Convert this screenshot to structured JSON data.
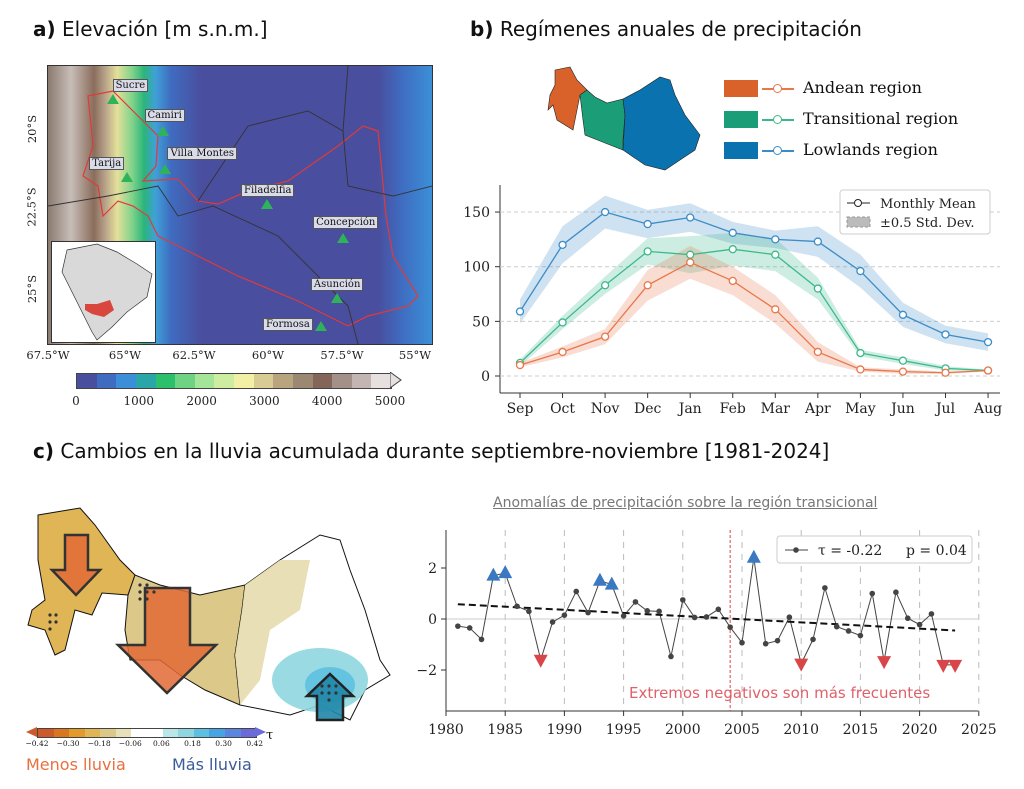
{
  "panel_a": {
    "letter": "a)",
    "title": "Elevación [m s.n.m.]",
    "lon_ticks": [
      "67.5°W",
      "65°W",
      "62.5°W",
      "60°W",
      "57.5°W",
      "55°W"
    ],
    "lat_ticks": [
      "20°S",
      "22.5°S",
      "25°S"
    ],
    "cities": [
      {
        "name": "Sucre",
        "lon": -65.3,
        "lat": -19.05
      },
      {
        "name": "Camiri",
        "lon": -63.6,
        "lat": -20.06
      },
      {
        "name": "Villa Montes",
        "lon": -63.5,
        "lat": -21.26
      },
      {
        "name": "Tarija",
        "lon": -64.8,
        "lat": -21.5
      },
      {
        "name": "Filadelfia",
        "lon": -60.04,
        "lat": -22.36
      },
      {
        "name": "Concepción",
        "lon": -57.45,
        "lat": -23.43
      },
      {
        "name": "Asunción",
        "lon": -57.66,
        "lat": -25.3
      },
      {
        "name": "Formosa",
        "lon": -58.2,
        "lat": -26.2
      }
    ],
    "colorbar": {
      "ticks": [
        "0",
        "1000",
        "2000",
        "3000",
        "4000",
        "5000"
      ],
      "colors": [
        "#4a4e9e",
        "#3f6cc0",
        "#3b8fd8",
        "#2aa6a8",
        "#2cbf6c",
        "#6fd384",
        "#a5e59a",
        "#cdeda0",
        "#f1f0a5",
        "#d8cc94",
        "#b8a47e",
        "#9c8872",
        "#836659",
        "#a39089",
        "#c3b6b2",
        "#e6e0df"
      ],
      "extend": "max"
    },
    "inset_highlight_color": "#d9463e"
  },
  "panel_b": {
    "letter": "b)",
    "title": "Regímenes anuales de precipitación",
    "regions": [
      {
        "label": "Andean region",
        "color": "#d9622b",
        "line_color": "#e8774a"
      },
      {
        "label": "Transitional region",
        "color": "#1b9e77",
        "line_color": "#3cb98a"
      },
      {
        "label": "Lowlands region",
        "color": "#0b72b0",
        "line_color": "#3b8cc7"
      }
    ],
    "legend": {
      "mean": "Monthly Mean",
      "std": "±0.5 Std. Dev."
    }
  },
  "panel_c": {
    "letter": "c)",
    "title": "Cambios en la lluvia acumulada durante septiembre-noviembre [1981-2024]",
    "colorbar": {
      "ticks": [
        "−0.42",
        "−0.30",
        "−0.18",
        "−0.06",
        "0.06",
        "0.18",
        "0.30",
        "0.42"
      ],
      "colors": [
        "#cc5a2a",
        "#d9771f",
        "#e29a2a",
        "#e0b556",
        "#dcc98a",
        "#e7e0b8",
        "#ffffff",
        "#ffffff",
        "#b9e6e6",
        "#8fd6e0",
        "#5ec0e0",
        "#47a3e2",
        "#5a86e0",
        "#6a6ad8"
      ],
      "symbol": "τ"
    },
    "less_label": "Menos lluvia",
    "more_label": "Más lluvia",
    "less_color": "#e8703f",
    "more_color": "#3b5b9a"
  },
  "chart_data": [
    {
      "type": "line",
      "categories": [
        "Sep",
        "Oct",
        "Nov",
        "Dec",
        "Jan",
        "Feb",
        "Mar",
        "Apr",
        "May",
        "Jun",
        "Jul",
        "Aug"
      ],
      "ylim": [
        -5,
        175
      ],
      "yticks": [
        "0",
        "50",
        "100",
        "150"
      ],
      "grid": "horizontal dashed",
      "legend_position": "top-right",
      "series": [
        {
          "name": "Andean region",
          "values": [
            10,
            22,
            36,
            83,
            104,
            87,
            61,
            22,
            6,
            4,
            3,
            5
          ],
          "half_std": [
            2,
            5,
            7,
            14,
            15,
            13,
            13,
            9,
            2,
            2,
            1,
            1
          ]
        },
        {
          "name": "Transitional region",
          "values": [
            12,
            49,
            83,
            114,
            111,
            116,
            111,
            80,
            21,
            14,
            7,
            5
          ],
          "half_std": [
            3,
            6,
            8,
            12,
            17,
            15,
            15,
            10,
            3,
            3,
            2,
            1
          ]
        },
        {
          "name": "Lowlands region",
          "values": [
            59,
            120,
            150,
            139,
            145,
            131,
            125,
            123,
            96,
            56,
            38,
            31
          ],
          "half_std": [
            11,
            17,
            15,
            13,
            13,
            10,
            8,
            14,
            15,
            11,
            8,
            8
          ]
        }
      ]
    },
    {
      "type": "line",
      "title": "Anomalías de precipitación sobre la región transicional",
      "xlim": [
        1980,
        2025
      ],
      "ylim": [
        -3.5,
        3.5
      ],
      "xticks": [
        "1980",
        "1985",
        "1990",
        "1995",
        "2000",
        "2005",
        "2010",
        "2015",
        "2020",
        "2025"
      ],
      "yticks": [
        "−2",
        "0",
        "2"
      ],
      "x": [
        1981,
        1982,
        1983,
        1984,
        1985,
        1986,
        1987,
        1988,
        1989,
        1990,
        1991,
        1992,
        1993,
        1994,
        1995,
        1996,
        1997,
        1998,
        1999,
        2000,
        2001,
        2002,
        2003,
        2004,
        2005,
        2006,
        2007,
        2008,
        2009,
        2010,
        2011,
        2012,
        2013,
        2014,
        2015,
        2016,
        2017,
        2018,
        2019,
        2020,
        2021,
        2022,
        2023
      ],
      "values": [
        -0.28,
        -0.35,
        -0.8,
        1.7,
        1.8,
        0.5,
        0.3,
        -1.6,
        -0.12,
        0.15,
        1.08,
        0.25,
        1.5,
        1.35,
        0.12,
        0.67,
        0.32,
        0.3,
        -1.47,
        0.75,
        0.06,
        0.08,
        0.38,
        -0.32,
        -0.93,
        2.4,
        -0.97,
        -0.85,
        0.07,
        -1.75,
        -0.8,
        1.22,
        -0.3,
        -0.47,
        -0.65,
        1.0,
        -1.65,
        1.05,
        0.03,
        -0.22,
        0.2,
        -1.8,
        -1.8
      ],
      "positive_extremes": [
        1984,
        1985,
        1993,
        1994,
        2006
      ],
      "negative_extremes": [
        1988,
        2010,
        2017,
        2022,
        2023
      ],
      "trend": {
        "start": [
          1981,
          0.58
        ],
        "end": [
          2023,
          -0.45
        ]
      },
      "legend": {
        "tau": "τ = -0.22",
        "p": "p = 0.04"
      },
      "legend_position": "top-right",
      "breakpoint_year": 2004,
      "annotation": "Extremos negativos son más frecuentes",
      "colors": {
        "line": "#444444",
        "positive": "#3b78c2",
        "negative": "#d9464a",
        "annotation": "#e0606a"
      }
    }
  ]
}
